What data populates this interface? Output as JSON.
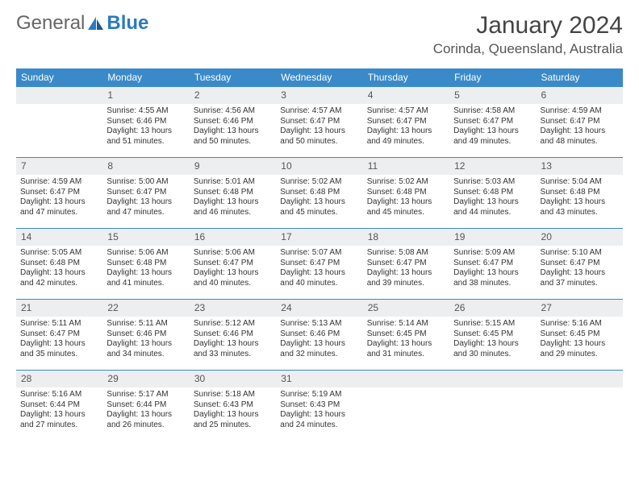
{
  "logo": {
    "text1": "General",
    "text2": "Blue"
  },
  "title": "January 2024",
  "location": "Corinda, Queensland, Australia",
  "weekdays": [
    "Sunday",
    "Monday",
    "Tuesday",
    "Wednesday",
    "Thursday",
    "Friday",
    "Saturday"
  ],
  "colors": {
    "header_bg": "#3a8ac9",
    "header_text": "#ffffff",
    "daynum_bg": "#eceef0",
    "daynum_border": "#3a8ac9",
    "body_text": "#333333",
    "logo_blue": "#2a7bbf"
  },
  "startOffset": 1,
  "days": [
    {
      "n": 1,
      "sunrise": "4:55 AM",
      "sunset": "6:46 PM",
      "daylight": "13 hours and 51 minutes."
    },
    {
      "n": 2,
      "sunrise": "4:56 AM",
      "sunset": "6:46 PM",
      "daylight": "13 hours and 50 minutes."
    },
    {
      "n": 3,
      "sunrise": "4:57 AM",
      "sunset": "6:47 PM",
      "daylight": "13 hours and 50 minutes."
    },
    {
      "n": 4,
      "sunrise": "4:57 AM",
      "sunset": "6:47 PM",
      "daylight": "13 hours and 49 minutes."
    },
    {
      "n": 5,
      "sunrise": "4:58 AM",
      "sunset": "6:47 PM",
      "daylight": "13 hours and 49 minutes."
    },
    {
      "n": 6,
      "sunrise": "4:59 AM",
      "sunset": "6:47 PM",
      "daylight": "13 hours and 48 minutes."
    },
    {
      "n": 7,
      "sunrise": "4:59 AM",
      "sunset": "6:47 PM",
      "daylight": "13 hours and 47 minutes."
    },
    {
      "n": 8,
      "sunrise": "5:00 AM",
      "sunset": "6:47 PM",
      "daylight": "13 hours and 47 minutes."
    },
    {
      "n": 9,
      "sunrise": "5:01 AM",
      "sunset": "6:48 PM",
      "daylight": "13 hours and 46 minutes."
    },
    {
      "n": 10,
      "sunrise": "5:02 AM",
      "sunset": "6:48 PM",
      "daylight": "13 hours and 45 minutes."
    },
    {
      "n": 11,
      "sunrise": "5:02 AM",
      "sunset": "6:48 PM",
      "daylight": "13 hours and 45 minutes."
    },
    {
      "n": 12,
      "sunrise": "5:03 AM",
      "sunset": "6:48 PM",
      "daylight": "13 hours and 44 minutes."
    },
    {
      "n": 13,
      "sunrise": "5:04 AM",
      "sunset": "6:48 PM",
      "daylight": "13 hours and 43 minutes."
    },
    {
      "n": 14,
      "sunrise": "5:05 AM",
      "sunset": "6:48 PM",
      "daylight": "13 hours and 42 minutes."
    },
    {
      "n": 15,
      "sunrise": "5:06 AM",
      "sunset": "6:48 PM",
      "daylight": "13 hours and 41 minutes."
    },
    {
      "n": 16,
      "sunrise": "5:06 AM",
      "sunset": "6:47 PM",
      "daylight": "13 hours and 40 minutes."
    },
    {
      "n": 17,
      "sunrise": "5:07 AM",
      "sunset": "6:47 PM",
      "daylight": "13 hours and 40 minutes."
    },
    {
      "n": 18,
      "sunrise": "5:08 AM",
      "sunset": "6:47 PM",
      "daylight": "13 hours and 39 minutes."
    },
    {
      "n": 19,
      "sunrise": "5:09 AM",
      "sunset": "6:47 PM",
      "daylight": "13 hours and 38 minutes."
    },
    {
      "n": 20,
      "sunrise": "5:10 AM",
      "sunset": "6:47 PM",
      "daylight": "13 hours and 37 minutes."
    },
    {
      "n": 21,
      "sunrise": "5:11 AM",
      "sunset": "6:47 PM",
      "daylight": "13 hours and 35 minutes."
    },
    {
      "n": 22,
      "sunrise": "5:11 AM",
      "sunset": "6:46 PM",
      "daylight": "13 hours and 34 minutes."
    },
    {
      "n": 23,
      "sunrise": "5:12 AM",
      "sunset": "6:46 PM",
      "daylight": "13 hours and 33 minutes."
    },
    {
      "n": 24,
      "sunrise": "5:13 AM",
      "sunset": "6:46 PM",
      "daylight": "13 hours and 32 minutes."
    },
    {
      "n": 25,
      "sunrise": "5:14 AM",
      "sunset": "6:45 PM",
      "daylight": "13 hours and 31 minutes."
    },
    {
      "n": 26,
      "sunrise": "5:15 AM",
      "sunset": "6:45 PM",
      "daylight": "13 hours and 30 minutes."
    },
    {
      "n": 27,
      "sunrise": "5:16 AM",
      "sunset": "6:45 PM",
      "daylight": "13 hours and 29 minutes."
    },
    {
      "n": 28,
      "sunrise": "5:16 AM",
      "sunset": "6:44 PM",
      "daylight": "13 hours and 27 minutes."
    },
    {
      "n": 29,
      "sunrise": "5:17 AM",
      "sunset": "6:44 PM",
      "daylight": "13 hours and 26 minutes."
    },
    {
      "n": 30,
      "sunrise": "5:18 AM",
      "sunset": "6:43 PM",
      "daylight": "13 hours and 25 minutes."
    },
    {
      "n": 31,
      "sunrise": "5:19 AM",
      "sunset": "6:43 PM",
      "daylight": "13 hours and 24 minutes."
    }
  ],
  "labels": {
    "sunrise": "Sunrise:",
    "sunset": "Sunset:",
    "daylight": "Daylight:"
  }
}
